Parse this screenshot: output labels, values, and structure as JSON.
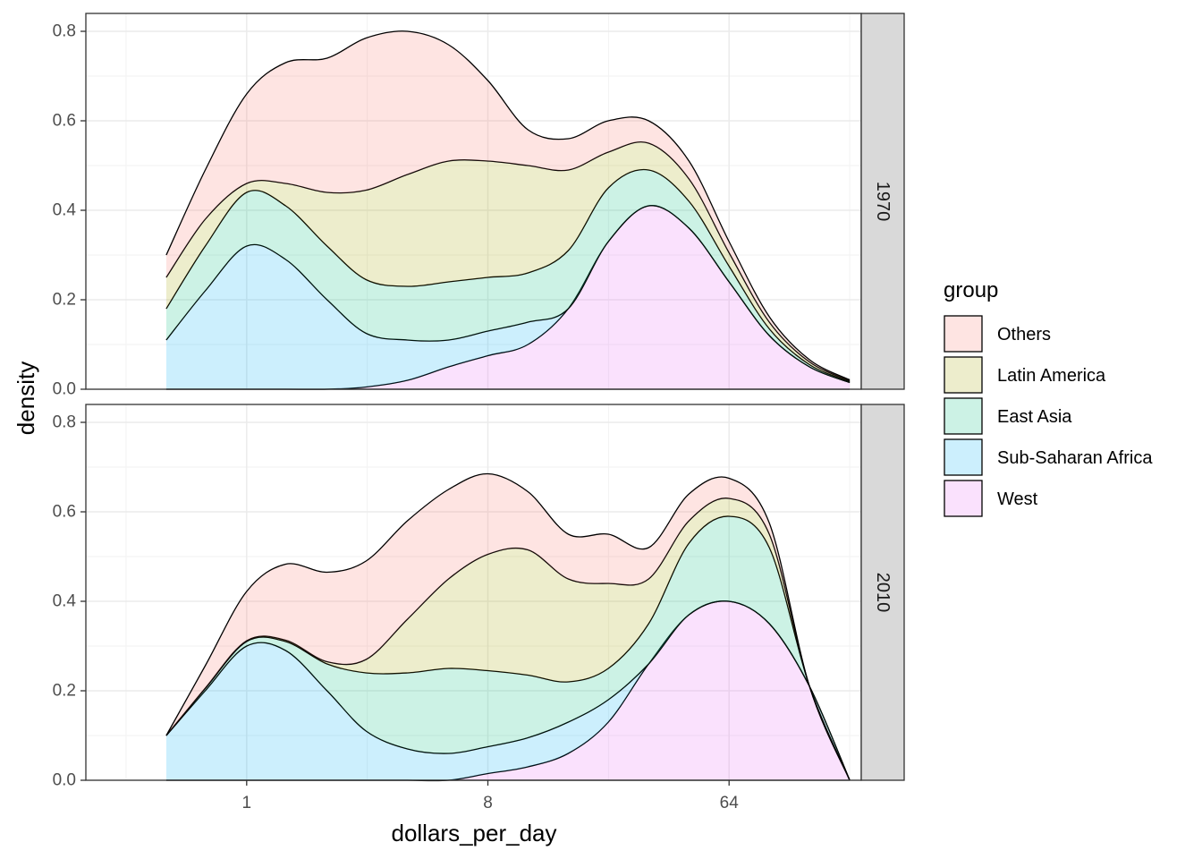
{
  "chart_data": {
    "type": "area",
    "stacked": true,
    "facet_by": "year",
    "xlabel": "dollars_per_day",
    "ylabel": "density",
    "x_scale": "log2",
    "x_ticks": [
      1,
      8,
      64
    ],
    "x_tick_labels": [
      "1",
      "8",
      "64"
    ],
    "xlim": [
      0.25,
      200
    ],
    "ylim": [
      0,
      0.84
    ],
    "y_ticks": [
      0.0,
      0.2,
      0.4,
      0.6,
      0.8
    ],
    "y_tick_labels": [
      "0.0",
      "0.2",
      "0.4",
      "0.6",
      "0.8"
    ],
    "grid": true,
    "legend": {
      "title": "group",
      "position": "right",
      "entries": [
        {
          "label": "Others",
          "fill": "#f8766d"
        },
        {
          "label": "Latin America",
          "fill": "#a3a500"
        },
        {
          "label": "East Asia",
          "fill": "#00bf7d"
        },
        {
          "label": "Sub-Saharan Africa",
          "fill": "#00b0f6"
        },
        {
          "label": "West",
          "fill": "#e76bf3"
        }
      ]
    },
    "x": [
      0.5,
      0.7,
      1.0,
      1.4,
      2.0,
      2.8,
      4.0,
      5.7,
      8.0,
      11.3,
      16.0,
      22.6,
      32.0,
      45.3,
      64.0,
      90.5,
      128.0,
      181.0
    ],
    "panels": [
      {
        "label": "1970",
        "series": [
          {
            "name": "West",
            "values": [
              0.0,
              0.0,
              0.0,
              0.0,
              0.0,
              0.005,
              0.02,
              0.05,
              0.075,
              0.1,
              0.18,
              0.33,
              0.41,
              0.36,
              0.24,
              0.12,
              0.05,
              0.015
            ]
          },
          {
            "name": "Sub-Saharan Africa",
            "values": [
              0.11,
              0.22,
              0.32,
              0.29,
              0.2,
              0.12,
              0.09,
              0.06,
              0.055,
              0.05,
              0.0,
              0.0,
              0.0,
              0.0,
              0.0,
              0.0,
              0.0,
              0.0
            ]
          },
          {
            "name": "East Asia",
            "values": [
              0.07,
              0.1,
              0.12,
              0.12,
              0.12,
              0.12,
              0.12,
              0.13,
              0.12,
              0.11,
              0.13,
              0.12,
              0.08,
              0.06,
              0.035,
              0.015,
              0.005,
              0.002
            ]
          },
          {
            "name": "Latin America",
            "values": [
              0.07,
              0.06,
              0.02,
              0.05,
              0.12,
              0.2,
              0.25,
              0.27,
              0.26,
              0.24,
              0.18,
              0.08,
              0.06,
              0.05,
              0.03,
              0.015,
              0.006,
              0.002
            ]
          },
          {
            "name": "Others",
            "values": [
              0.05,
              0.11,
              0.2,
              0.27,
              0.3,
              0.34,
              0.32,
              0.26,
              0.18,
              0.08,
              0.07,
              0.07,
              0.05,
              0.04,
              0.025,
              0.012,
              0.005,
              0.002
            ]
          }
        ]
      },
      {
        "label": "2010",
        "series": [
          {
            "name": "West",
            "values": [
              0.0,
              0.0,
              0.0,
              0.0,
              0.0,
              0.0,
              0.0,
              0.0,
              0.015,
              0.03,
              0.06,
              0.13,
              0.26,
              0.37,
              0.4,
              0.35,
              0.21,
              0.0
            ]
          },
          {
            "name": "Sub-Saharan Africa",
            "values": [
              0.1,
              0.2,
              0.3,
              0.29,
              0.2,
              0.11,
              0.07,
              0.06,
              0.06,
              0.065,
              0.07,
              0.05,
              0.0,
              0.0,
              0.0,
              0.0,
              0.0,
              0.0
            ]
          },
          {
            "name": "East Asia",
            "values": [
              0.0,
              0.005,
              0.01,
              0.02,
              0.06,
              0.13,
              0.17,
              0.19,
              0.17,
              0.14,
              0.09,
              0.07,
              0.09,
              0.16,
              0.19,
              0.17,
              0.0,
              0.0
            ]
          },
          {
            "name": "Latin America",
            "values": [
              0.0,
              0.001,
              0.002,
              0.003,
              0.005,
              0.03,
              0.12,
              0.2,
              0.26,
              0.28,
              0.23,
              0.19,
              0.1,
              0.05,
              0.04,
              0.03,
              0.0,
              0.0
            ]
          },
          {
            "name": "Others",
            "values": [
              0.0,
              0.05,
              0.11,
              0.17,
              0.2,
              0.22,
              0.22,
              0.2,
              0.18,
              0.13,
              0.1,
              0.11,
              0.07,
              0.06,
              0.045,
              0.025,
              0.0,
              0.0
            ]
          }
        ]
      }
    ]
  }
}
